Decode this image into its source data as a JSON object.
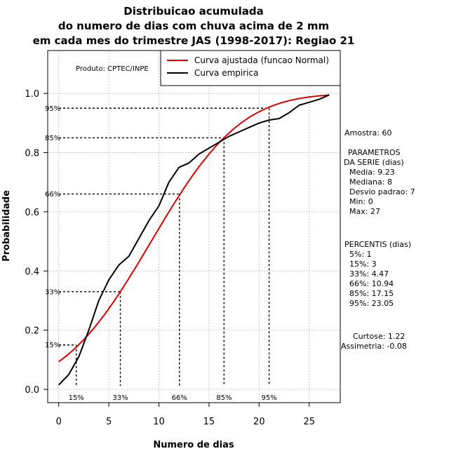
{
  "chart_data": {
    "type": "line",
    "title": [
      "Distribuicao acumulada",
      "do numero de dias com chuva acima de 2 mm",
      "em cada mes do trimestre JAS (1998-2017): Regiao 21"
    ],
    "xlabel": "Numero de dias",
    "ylabel": "Probabilidade",
    "xlim": [
      -1.1,
      28.1
    ],
    "ylim": [
      -0.045,
      1.145
    ],
    "xticks": [
      0,
      5,
      10,
      15,
      20,
      25
    ],
    "xtick_labels": [
      "0",
      "5",
      "10",
      "15",
      "20",
      "25"
    ],
    "yticks": [
      0.0,
      0.2,
      0.4,
      0.6,
      0.8,
      1.0
    ],
    "ytick_labels": [
      "0.0",
      "0.2",
      "0.4",
      "0.6",
      "0.8",
      "1.0"
    ],
    "grid": true,
    "legend_position": "top-right",
    "credit": "Produto: CPTEC/INPE",
    "series": [
      {
        "name": "Curva ajustada (funcao Normal)",
        "color": "#dd0000",
        "type": "normal_cdf",
        "mean": 9.23,
        "sd": 7,
        "x_range": [
          0,
          27
        ]
      },
      {
        "name": "Curva empirica",
        "color": "#000000",
        "x": [
          0,
          1,
          2,
          3,
          4,
          5,
          6,
          7,
          8,
          9,
          10,
          11,
          12,
          13,
          14,
          15,
          16,
          17,
          18,
          19,
          20,
          21,
          22,
          23,
          24,
          25,
          26,
          27
        ],
        "y": [
          0.015,
          0.05,
          0.11,
          0.2,
          0.3,
          0.37,
          0.42,
          0.45,
          0.51,
          0.57,
          0.62,
          0.7,
          0.75,
          0.765,
          0.795,
          0.815,
          0.835,
          0.855,
          0.87,
          0.885,
          0.9,
          0.91,
          0.915,
          0.935,
          0.96,
          0.97,
          0.98,
          0.995
        ]
      }
    ],
    "percentile_markers": [
      {
        "p": 0.15,
        "x": 1.75,
        "label": "15%",
        "prob_label": "15%"
      },
      {
        "p": 0.33,
        "x": 6.15,
        "label": "33%",
        "prob_label": "33%"
      },
      {
        "p": 0.66,
        "x": 12.05,
        "label": "66%",
        "prob_label": "66%"
      },
      {
        "p": 0.85,
        "x": 16.5,
        "label": "85%",
        "prob_label": "85%"
      },
      {
        "p": 0.95,
        "x": 21.0,
        "label": "95%",
        "prob_label": "95%"
      }
    ],
    "stats_panel": [
      "Amostra: 60",
      "PARAMETROS",
      "DA SERIE (dias)",
      "Media: 9.23",
      "Mediana: 8",
      "Desvio padrao: 7",
      "Min: 0",
      "Max: 27",
      "PERCENTIS (dias)",
      "5%: 1",
      "15%: 3",
      "33%: 4.47",
      "66%: 10.94",
      "85%: 17.15",
      "95%: 23.05",
      "Curtose: 1.22",
      "Assimetria: -0.08"
    ]
  }
}
